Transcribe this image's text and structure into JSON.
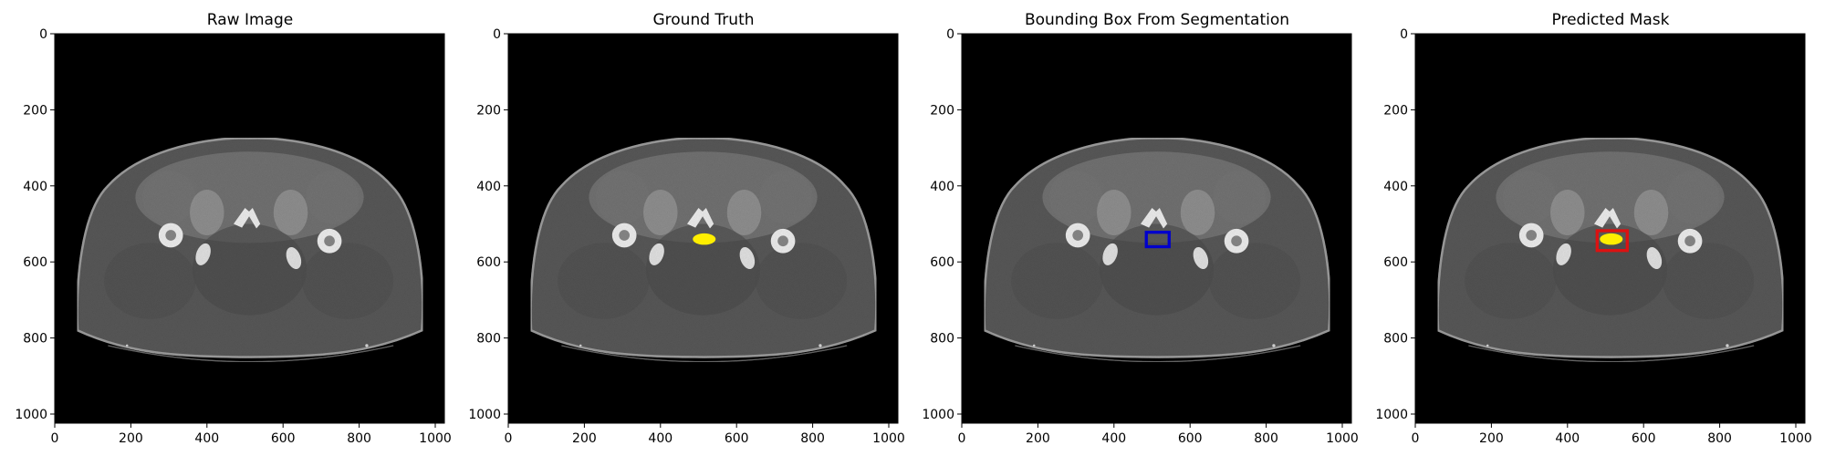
{
  "panels": [
    {
      "title": "Raw Image",
      "overlay": "none"
    },
    {
      "title": "Ground Truth",
      "overlay": "mask"
    },
    {
      "title": "Bounding Box From Segmentation",
      "overlay": "box"
    },
    {
      "title": "Predicted Mask",
      "overlay": "mask+box"
    }
  ],
  "axes": {
    "x_ticks": [
      "0",
      "200",
      "400",
      "600",
      "800",
      "1000"
    ],
    "y_ticks": [
      "0",
      "200",
      "400",
      "600",
      "800",
      "1000"
    ],
    "x_range": [
      0,
      1024
    ],
    "y_range": [
      0,
      1024
    ]
  },
  "annotations": {
    "mask": {
      "cx": 515,
      "cy": 540,
      "rx": 30,
      "ry": 15,
      "color": "#ffee00"
    },
    "gt_box": {
      "x0": 485,
      "y0": 522,
      "x1": 545,
      "y1": 560,
      "color": "#0000cc"
    },
    "pred_box": {
      "x0": 478,
      "y0": 518,
      "x1": 557,
      "y1": 570,
      "color": "#dd1111"
    }
  },
  "colors": {
    "background": "#000000",
    "body": "#666666",
    "bone": "#f2f2f2"
  }
}
